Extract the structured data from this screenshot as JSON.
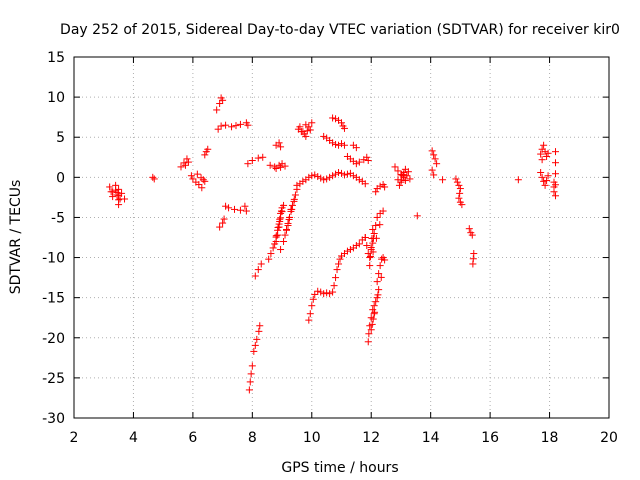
{
  "chart_data": {
    "type": "scatter",
    "title": "Day 252 of 2015, Sidereal Day-to-day VTEC variation (SDTVAR) for receiver kir0",
    "xlabel": "GPS time / hours",
    "ylabel": "SDTVAR / TECUs",
    "xlim": [
      2,
      20
    ],
    "ylim": [
      -30,
      15
    ],
    "grid": true,
    "marker": "+",
    "color": "#ff0000",
    "xticks": [
      "2",
      "4",
      "6",
      "8",
      "10",
      "12",
      "14",
      "16",
      "18",
      "20"
    ],
    "yticks": [
      "15",
      "10",
      "5",
      "0",
      "-5",
      "-10",
      "-15",
      "-20",
      "-25",
      "-30"
    ],
    "segments": [
      [
        [
          3.2,
          -1.2
        ],
        [
          3.3,
          -2.4
        ],
        [
          3.4,
          -1.6
        ],
        [
          3.5,
          -2.8
        ],
        [
          3.4,
          -1.0
        ],
        [
          3.6,
          -2.0
        ],
        [
          3.5,
          -3.4
        ],
        [
          3.7,
          -2.7
        ],
        [
          3.3,
          -1.8
        ],
        [
          3.45,
          -2.2
        ]
      ],
      [
        [
          4.65,
          0.0
        ],
        [
          4.7,
          -0.2
        ]
      ],
      [
        [
          5.6,
          1.3
        ],
        [
          5.7,
          1.8
        ],
        [
          5.8,
          2.3
        ],
        [
          5.75,
          1.5
        ],
        [
          5.85,
          1.9
        ]
      ],
      [
        [
          5.95,
          0.2
        ],
        [
          6.0,
          -0.2
        ],
        [
          6.1,
          -0.6
        ],
        [
          6.2,
          -0.9
        ],
        [
          6.3,
          -1.3
        ],
        [
          6.35,
          -0.3
        ],
        [
          6.15,
          0.4
        ],
        [
          6.4,
          -0.5
        ]
      ],
      [
        [
          6.4,
          2.8
        ],
        [
          6.45,
          3.2
        ],
        [
          6.5,
          3.5
        ]
      ],
      [
        [
          6.8,
          8.4
        ],
        [
          6.9,
          9.2
        ],
        [
          7.0,
          9.6
        ],
        [
          6.95,
          9.9
        ]
      ],
      [
        [
          6.85,
          6.0
        ],
        [
          6.95,
          6.4
        ],
        [
          7.1,
          6.5
        ],
        [
          7.3,
          6.3
        ],
        [
          7.6,
          6.6
        ],
        [
          7.8,
          6.8
        ],
        [
          7.85,
          6.5
        ]
      ],
      [
        [
          6.9,
          -6.2
        ],
        [
          7.0,
          -5.7
        ],
        [
          7.05,
          -5.2
        ]
      ],
      [
        [
          7.1,
          -3.6
        ],
        [
          7.2,
          -3.8
        ],
        [
          7.4,
          -4.0
        ],
        [
          7.6,
          -4.1
        ],
        [
          7.8,
          -4.2
        ],
        [
          7.75,
          -3.6
        ]
      ],
      [
        [
          7.85,
          1.7
        ],
        [
          8.0,
          2.1
        ],
        [
          8.2,
          2.4
        ],
        [
          8.35,
          2.5
        ]
      ],
      [
        [
          7.9,
          -26.5
        ],
        [
          7.93,
          -25.5
        ],
        [
          7.96,
          -24.5
        ],
        [
          8.0,
          -23.5
        ]
      ],
      [
        [
          8.05,
          -21.7
        ],
        [
          8.15,
          -20.2
        ],
        [
          8.22,
          -19.2
        ],
        [
          8.25,
          -18.5
        ]
      ],
      [
        [
          8.1,
          -12.3
        ],
        [
          8.2,
          -11.5
        ],
        [
          8.3,
          -10.8
        ]
      ],
      [
        [
          8.55,
          -10.2
        ],
        [
          8.7,
          -8.8
        ],
        [
          8.8,
          -8.0
        ],
        [
          8.85,
          -7.2
        ],
        [
          8.9,
          -6.2
        ],
        [
          8.92,
          -5.5
        ],
        [
          8.95,
          -4.5
        ],
        [
          9.0,
          -3.8
        ],
        [
          9.05,
          -3.5
        ],
        [
          8.85,
          -6.6
        ],
        [
          8.75,
          -8.3
        ],
        [
          8.98,
          -4.2
        ]
      ],
      [
        [
          8.6,
          1.5
        ],
        [
          8.75,
          1.3
        ],
        [
          8.9,
          1.5
        ],
        [
          9.0,
          1.7
        ],
        [
          9.1,
          1.4
        ],
        [
          8.8,
          1.1
        ]
      ],
      [
        [
          8.8,
          4.0
        ],
        [
          8.9,
          4.3
        ],
        [
          8.95,
          3.8
        ]
      ],
      [
        [
          8.95,
          -9.0
        ],
        [
          9.05,
          -8.0
        ],
        [
          9.1,
          -7.2
        ],
        [
          9.2,
          -6.0
        ],
        [
          9.25,
          -5.0
        ],
        [
          9.3,
          -4.0
        ],
        [
          9.4,
          -3.0
        ],
        [
          9.45,
          -2.2
        ],
        [
          9.5,
          -1.5
        ],
        [
          9.15,
          -6.5
        ],
        [
          9.35,
          -3.5
        ]
      ],
      [
        [
          9.5,
          -1.0
        ],
        [
          9.6,
          -0.8
        ],
        [
          9.7,
          -0.5
        ],
        [
          9.8,
          -0.3
        ],
        [
          9.9,
          0.0
        ],
        [
          10.0,
          0.2
        ],
        [
          10.1,
          0.3
        ],
        [
          10.2,
          0.1
        ],
        [
          10.3,
          -0.1
        ],
        [
          10.4,
          -0.3
        ],
        [
          10.5,
          -0.2
        ],
        [
          10.6,
          0.0
        ],
        [
          10.7,
          0.2
        ],
        [
          10.8,
          0.4
        ],
        [
          10.9,
          0.6
        ],
        [
          11.0,
          0.5
        ],
        [
          11.1,
          0.3
        ],
        [
          11.2,
          0.4
        ],
        [
          11.3,
          0.5
        ],
        [
          11.4,
          0.2
        ],
        [
          11.5,
          0.0
        ],
        [
          11.6,
          -0.3
        ],
        [
          11.7,
          -0.5
        ],
        [
          11.8,
          -0.8
        ]
      ],
      [
        [
          9.55,
          6.0
        ],
        [
          9.65,
          5.7
        ],
        [
          9.75,
          5.4
        ],
        [
          9.85,
          5.8
        ],
        [
          9.9,
          6.3
        ],
        [
          10.0,
          6.8
        ],
        [
          9.6,
          6.3
        ],
        [
          9.8,
          5.1
        ],
        [
          9.95,
          5.9
        ]
      ],
      [
        [
          10.4,
          5.1
        ],
        [
          10.5,
          4.9
        ],
        [
          10.6,
          4.6
        ],
        [
          10.7,
          4.3
        ],
        [
          10.8,
          4.1
        ],
        [
          10.9,
          4.0
        ],
        [
          11.0,
          4.2
        ],
        [
          11.1,
          4.0
        ]
      ],
      [
        [
          10.7,
          7.4
        ],
        [
          10.8,
          7.3
        ],
        [
          10.9,
          7.1
        ],
        [
          11.0,
          6.8
        ],
        [
          11.05,
          6.4
        ],
        [
          11.1,
          6.1
        ]
      ],
      [
        [
          11.2,
          2.6
        ],
        [
          11.3,
          2.3
        ],
        [
          11.4,
          2.0
        ],
        [
          11.5,
          1.7
        ],
        [
          11.6,
          1.9
        ]
      ],
      [
        [
          11.4,
          4.0
        ],
        [
          11.5,
          3.7
        ]
      ],
      [
        [
          11.75,
          2.2
        ],
        [
          11.85,
          2.5
        ],
        [
          11.9,
          2.1
        ]
      ],
      [
        [
          9.9,
          -17.8
        ],
        [
          9.95,
          -17.0
        ],
        [
          10.0,
          -16.0
        ],
        [
          10.05,
          -15.2
        ],
        [
          10.1,
          -14.6
        ],
        [
          10.2,
          -14.2
        ],
        [
          10.3,
          -14.3
        ],
        [
          10.4,
          -14.5
        ],
        [
          10.5,
          -14.4
        ],
        [
          10.6,
          -14.5
        ],
        [
          10.7,
          -14.3
        ],
        [
          10.75,
          -13.5
        ],
        [
          10.8,
          -12.5
        ],
        [
          10.85,
          -11.5
        ],
        [
          10.9,
          -10.8
        ],
        [
          10.95,
          -10.2
        ],
        [
          11.0,
          -9.8
        ],
        [
          11.1,
          -9.5
        ],
        [
          11.2,
          -9.2
        ],
        [
          11.3,
          -9.0
        ],
        [
          11.4,
          -8.8
        ],
        [
          11.5,
          -8.5
        ],
        [
          11.6,
          -8.3
        ],
        [
          11.7,
          -7.8
        ],
        [
          11.8,
          -7.5
        ]
      ],
      [
        [
          11.8,
          -7.5
        ],
        [
          11.85,
          -8.5
        ],
        [
          11.9,
          -9.5
        ],
        [
          11.95,
          -10.0
        ],
        [
          12.0,
          -9.0
        ],
        [
          12.05,
          -8.2
        ],
        [
          12.1,
          -7.0
        ],
        [
          12.15,
          -6.0
        ],
        [
          12.2,
          -5.0
        ],
        [
          12.3,
          -4.5
        ],
        [
          12.4,
          -4.2
        ],
        [
          11.95,
          -11.0
        ],
        [
          12.05,
          -6.5
        ]
      ],
      [
        [
          11.9,
          -20.5
        ],
        [
          11.92,
          -19.5
        ],
        [
          11.95,
          -18.5
        ],
        [
          12.0,
          -17.5
        ],
        [
          12.05,
          -16.5
        ],
        [
          12.1,
          -16.0
        ],
        [
          12.15,
          -15.5
        ],
        [
          12.2,
          -15.0
        ],
        [
          12.25,
          -14.0
        ],
        [
          12.2,
          -13.0
        ],
        [
          12.25,
          -12.0
        ],
        [
          12.3,
          -11.0
        ],
        [
          12.35,
          -10.2
        ],
        [
          12.4,
          -10.0
        ],
        [
          12.45,
          -10.3
        ],
        [
          12.0,
          -19.0
        ],
        [
          12.1,
          -17.0
        ]
      ],
      [
        [
          12.15,
          -1.8
        ],
        [
          12.2,
          -1.4
        ],
        [
          12.3,
          -1.1
        ],
        [
          12.4,
          -0.9
        ],
        [
          12.45,
          -1.2
        ]
      ],
      [
        [
          12.8,
          1.3
        ],
        [
          12.9,
          0.8
        ],
        [
          13.0,
          0.3
        ],
        [
          13.1,
          0.6
        ],
        [
          13.2,
          0.2
        ],
        [
          13.3,
          -0.2
        ],
        [
          13.0,
          -0.6
        ],
        [
          13.1,
          0.0
        ],
        [
          13.25,
          0.7
        ],
        [
          12.9,
          -0.3
        ],
        [
          13.15,
          1.0
        ],
        [
          12.95,
          -1.0
        ]
      ],
      [
        [
          13.55,
          -4.8
        ]
      ],
      [
        [
          14.05,
          3.3
        ],
        [
          14.1,
          2.8
        ],
        [
          14.15,
          2.3
        ],
        [
          14.2,
          1.7
        ],
        [
          14.05,
          0.9
        ],
        [
          14.1,
          0.3
        ]
      ],
      [
        [
          14.4,
          -0.3
        ]
      ],
      [
        [
          14.85,
          -0.2
        ],
        [
          14.9,
          -0.6
        ],
        [
          14.95,
          -1.0
        ],
        [
          15.0,
          -1.4
        ],
        [
          14.95,
          -2.6
        ],
        [
          15.0,
          -3.1
        ],
        [
          15.05,
          -3.4
        ]
      ],
      [
        [
          15.3,
          -6.4
        ],
        [
          15.35,
          -6.9
        ],
        [
          15.4,
          -7.2
        ]
      ],
      [
        [
          15.45,
          -9.5
        ],
        [
          15.42,
          -10.8
        ]
      ],
      [
        [
          16.95,
          -0.3
        ]
      ],
      [
        [
          17.7,
          2.9
        ],
        [
          17.75,
          3.5
        ],
        [
          17.8,
          4.0
        ],
        [
          17.85,
          3.2
        ],
        [
          17.9,
          2.6
        ],
        [
          17.75,
          2.2
        ],
        [
          17.95,
          3.0
        ]
      ],
      [
        [
          17.7,
          0.6
        ],
        [
          17.75,
          0.0
        ],
        [
          17.8,
          -0.5
        ],
        [
          17.85,
          -1.0
        ],
        [
          17.9,
          -0.4
        ],
        [
          17.95,
          0.2
        ]
      ],
      [
        [
          18.15,
          -0.6
        ],
        [
          18.15,
          -1.8
        ],
        [
          18.2,
          -2.3
        ],
        [
          18.2,
          3.2
        ]
      ]
    ]
  }
}
